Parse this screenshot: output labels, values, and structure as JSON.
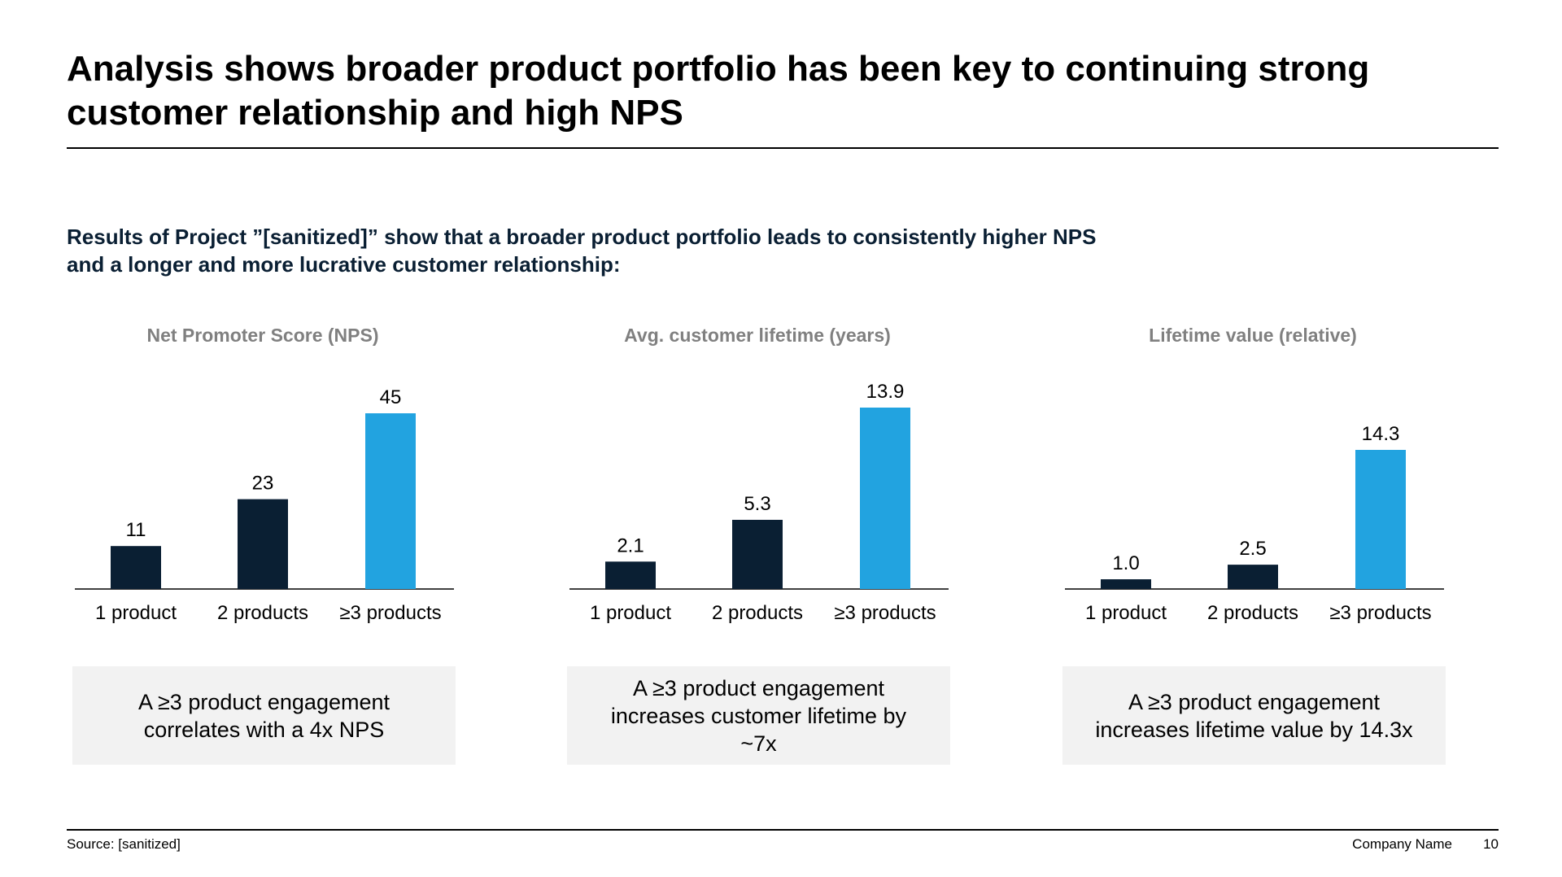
{
  "title": "Analysis shows broader product portfolio has been key to continuing strong customer relationship and high NPS",
  "subtitle_line1": "Results of Project ”[sanitized]” show that a broader product portfolio leads to consistently higher NPS",
  "subtitle_line2": "and a longer and more lucrative customer relationship:",
  "colors": {
    "dark": "#0a1f33",
    "accent": "#22a3e0",
    "box": "#f2f2f2"
  },
  "chart_data": [
    {
      "type": "bar",
      "title": "Net Promoter Score (NPS)",
      "categories": [
        "1 product",
        "2 products",
        "≥3 products"
      ],
      "values": [
        11,
        23,
        45
      ],
      "labels": [
        "11",
        "23",
        "45"
      ],
      "ylim": [
        0,
        45
      ],
      "highlight_index": 2,
      "takeaway": "A ≥3 product engagement correlates with a 4x NPS"
    },
    {
      "type": "bar",
      "title": "Avg. customer lifetime (years)",
      "categories": [
        "1 product",
        "2 products",
        "≥3 products"
      ],
      "values": [
        2.1,
        5.3,
        13.9
      ],
      "labels": [
        "2.1",
        "5.3",
        "13.9"
      ],
      "ylim": [
        0,
        13.9
      ],
      "highlight_index": 2,
      "takeaway": "A ≥3 product engagement increases customer lifetime by ~7x"
    },
    {
      "type": "bar",
      "title": "Lifetime value (relative)",
      "categories": [
        "1 product",
        "2 products",
        "≥3 products"
      ],
      "values": [
        1.0,
        2.5,
        14.3
      ],
      "labels": [
        "1.0",
        "2.5",
        "14.3"
      ],
      "ylim": [
        0,
        18
      ],
      "highlight_index": 2,
      "takeaway": "A ≥3 product engagement increases lifetime value by 14.3x"
    }
  ],
  "footer": {
    "source": "Source: [sanitized]",
    "company": "Company Name",
    "page": "10"
  }
}
